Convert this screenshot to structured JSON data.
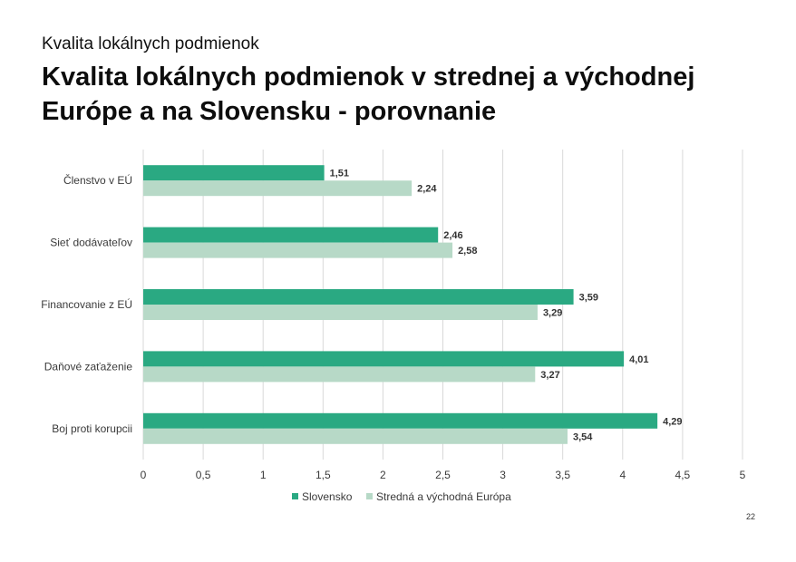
{
  "header": {
    "subtitle": "Kvalita lokálnych podmienok",
    "title": "Kvalita lokálnych podmienok v strednej a východnej Európe a na Slovensku - porovnanie"
  },
  "page_number": "22",
  "colors": {
    "slovensko": "#2aa982",
    "stredna_vychodna_europa": "#b7d9c7",
    "gridline": "#d9d9d9"
  },
  "chart_data": {
    "type": "bar",
    "orientation": "horizontal",
    "title": "Kvalita lokálnych podmienok v strednej a východnej Európe a na Slovensku - porovnanie",
    "categories": [
      "Členstvo v EÚ",
      "Sieť dodávateľov",
      "Financovanie z EÚ",
      "Daňové zaťaženie",
      "Boj proti korupcii"
    ],
    "series": [
      {
        "name": "Slovensko",
        "values": [
          1.51,
          2.46,
          3.59,
          4.01,
          4.29
        ],
        "labels": [
          "1,51",
          "2,46",
          "3,59",
          "4,01",
          "4,29"
        ]
      },
      {
        "name": "Stredná a východná Európa",
        "values": [
          2.24,
          2.58,
          3.29,
          3.27,
          3.54
        ],
        "labels": [
          "2,24",
          "2,58",
          "3,29",
          "3,27",
          "3,54"
        ]
      }
    ],
    "xlim": [
      0,
      5
    ],
    "xticks": [
      0,
      0.5,
      1,
      1.5,
      2,
      2.5,
      3,
      3.5,
      4,
      4.5,
      5
    ],
    "xtick_labels": [
      "0",
      "0,5",
      "1",
      "1,5",
      "2",
      "2,5",
      "3",
      "3,5",
      "4",
      "4,5",
      "5"
    ],
    "xlabel": "",
    "ylabel": "",
    "grid": true,
    "legend_position": "bottom"
  }
}
